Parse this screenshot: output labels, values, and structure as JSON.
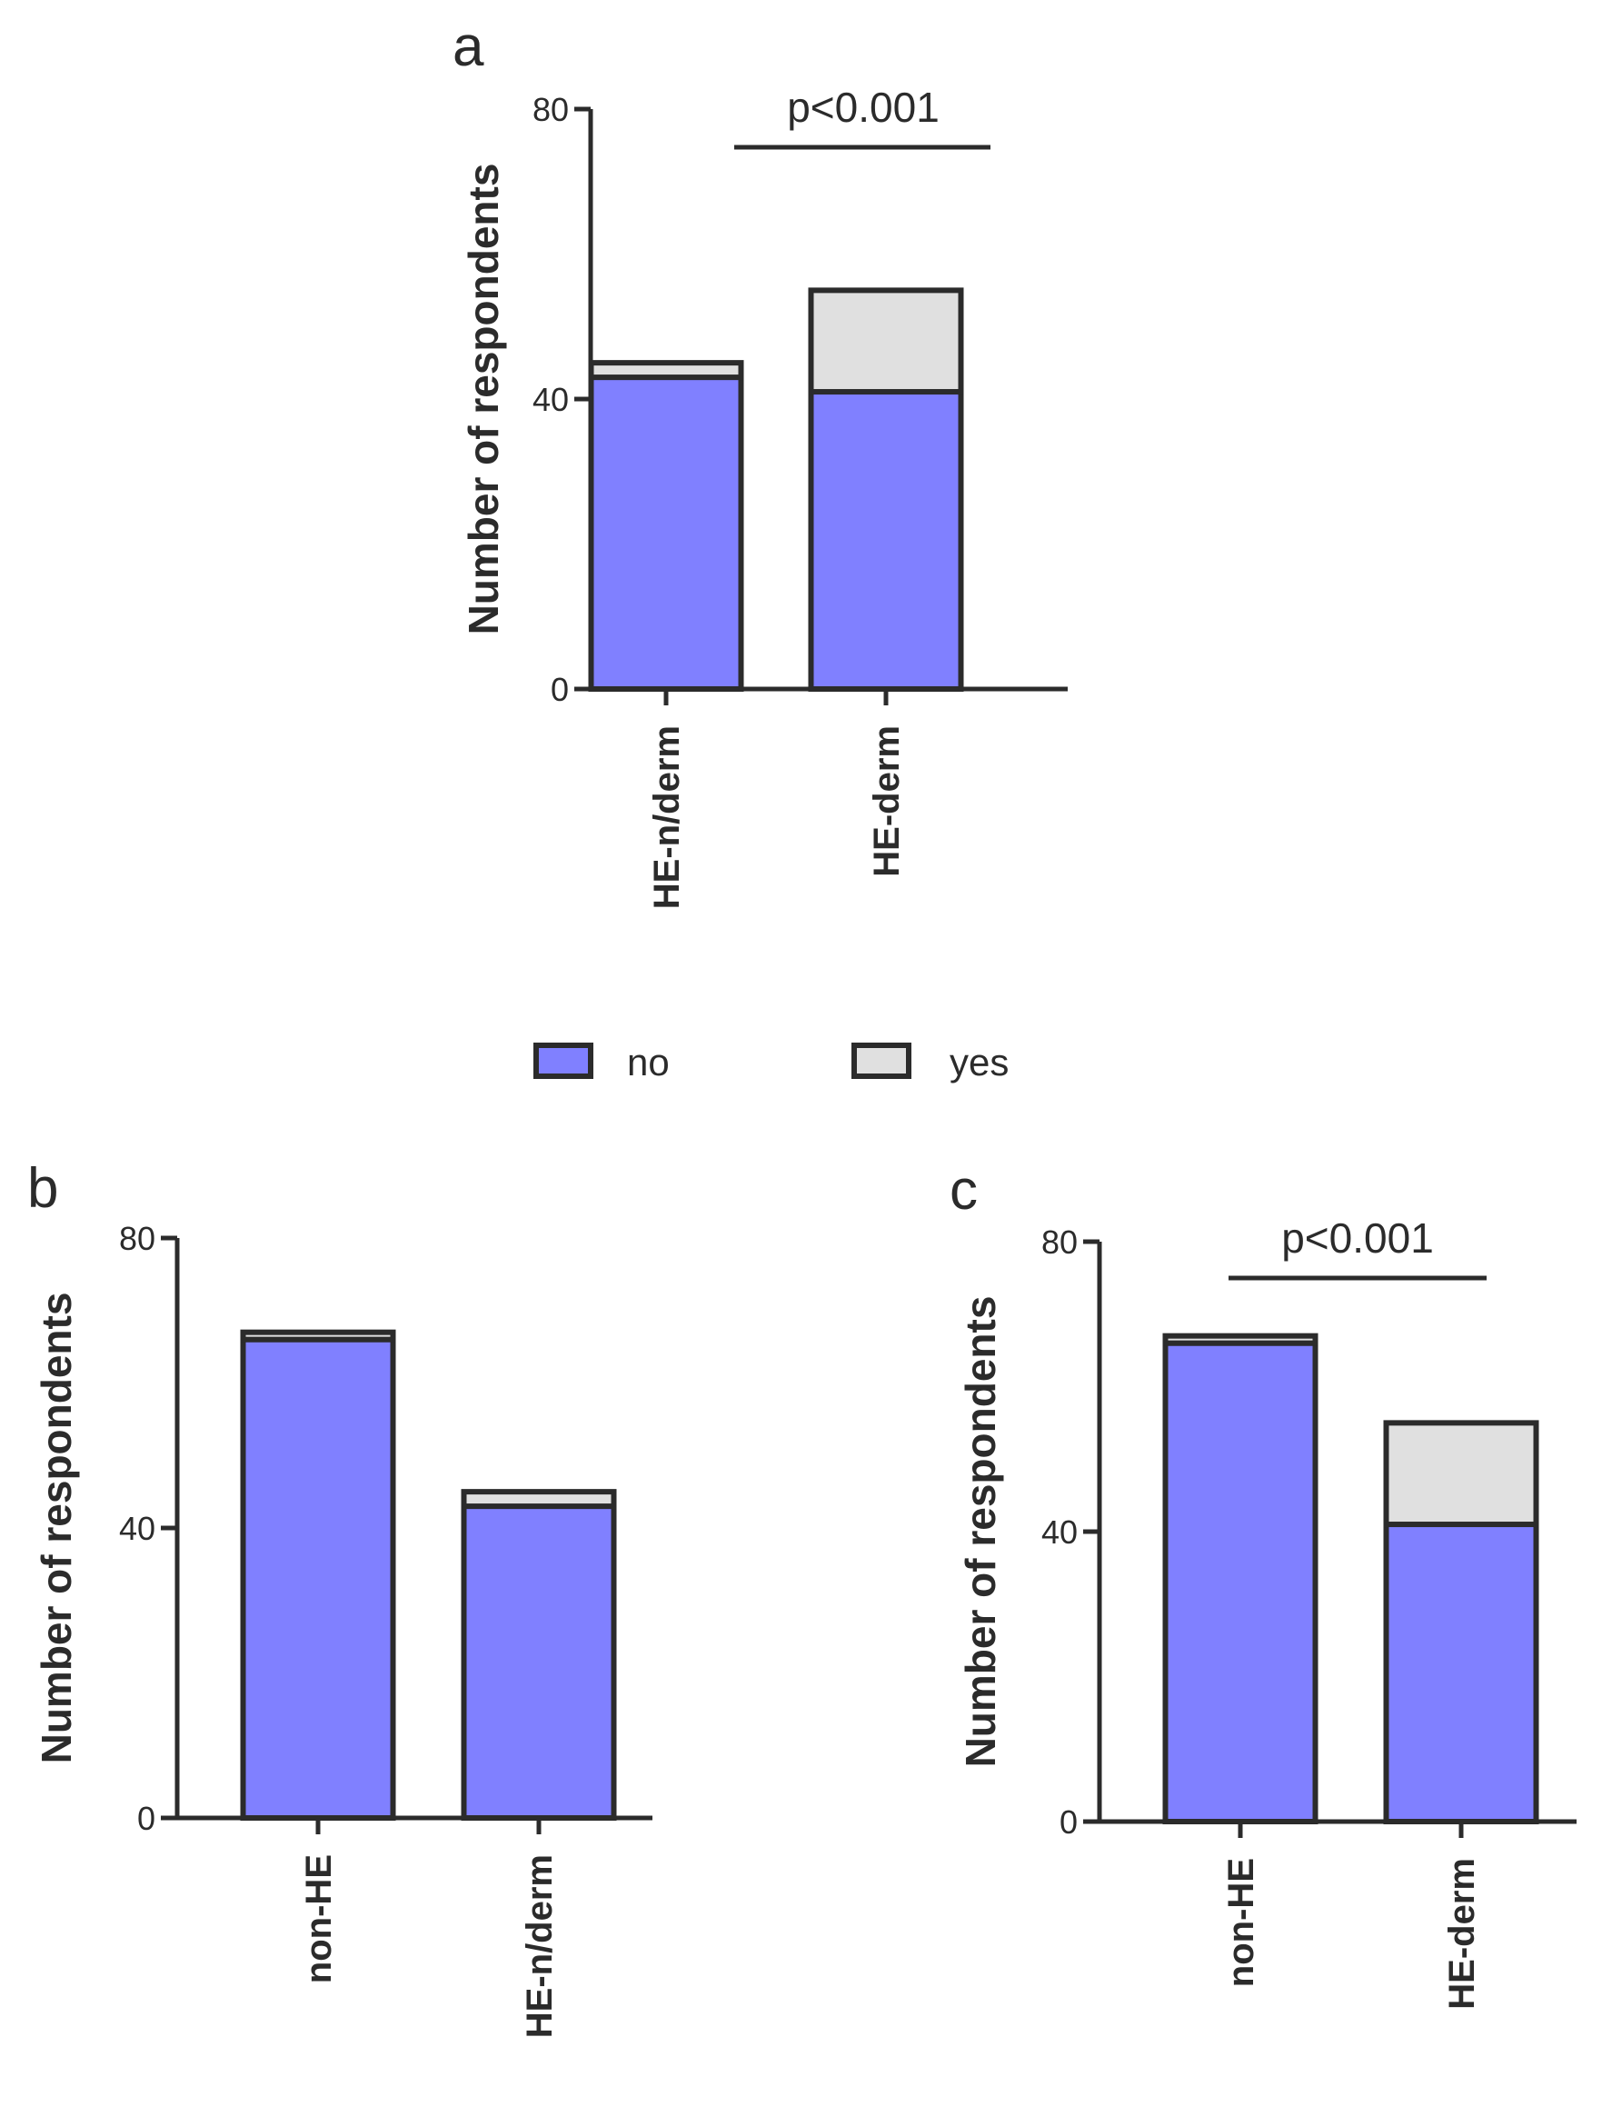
{
  "colors": {
    "no": "#8080ff",
    "yes": "#e0e0e0",
    "stroke": "#2b2b2b"
  },
  "legend": {
    "items": [
      {
        "key": "no",
        "label": "no"
      },
      {
        "key": "yes",
        "label": "yes"
      }
    ]
  },
  "chart_data": [
    {
      "panel": "a",
      "type": "bar",
      "stacked": true,
      "ylabel": "Number of respondents",
      "ylim": [
        0,
        80
      ],
      "yticks": [
        "0",
        "40",
        "80"
      ],
      "categories": [
        "HE-n/derm",
        "HE-derm"
      ],
      "series": [
        {
          "name": "no",
          "values": [
            43,
            41
          ]
        },
        {
          "name": "yes",
          "values": [
            2,
            14
          ]
        }
      ],
      "annotation": "p<0.001"
    },
    {
      "panel": "b",
      "type": "bar",
      "stacked": true,
      "ylabel": "Number of respondents",
      "ylim": [
        0,
        80
      ],
      "yticks": [
        "0",
        "40",
        "80"
      ],
      "categories": [
        "non-HE",
        "HE-n/derm"
      ],
      "series": [
        {
          "name": "no",
          "values": [
            66,
            43
          ]
        },
        {
          "name": "yes",
          "values": [
            1,
            2
          ]
        }
      ],
      "annotation": ""
    },
    {
      "panel": "c",
      "type": "bar",
      "stacked": true,
      "ylabel": "Number of respondents",
      "ylim": [
        0,
        80
      ],
      "yticks": [
        "0",
        "40",
        "80"
      ],
      "categories": [
        "non-HE",
        "HE-derm"
      ],
      "series": [
        {
          "name": "no",
          "values": [
            66,
            41
          ]
        },
        {
          "name": "yes",
          "values": [
            1,
            14
          ]
        }
      ],
      "annotation": "p<0.001"
    }
  ]
}
